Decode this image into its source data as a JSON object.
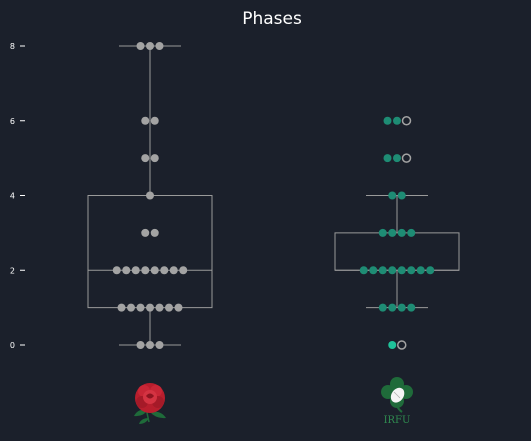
{
  "chart_data": {
    "type": "box-swarm",
    "title": "Phases",
    "xlabel": "",
    "ylabel": "",
    "ylim": [
      -0.5,
      8.5
    ],
    "y_ticks": [
      0,
      2,
      4,
      6,
      8
    ],
    "grid": false,
    "colors": {
      "background": "#1b202b",
      "box_line": "#9a9a9a",
      "england_points": "#a3a3a3",
      "ireland_points": "#1e8c74",
      "ireland_highlight": "#1fc29a",
      "hollow_marker": "#a3a3a3",
      "rose_red": "#b81e2d",
      "shamrock_green": "#1f6b3a"
    },
    "series": [
      {
        "logo": "england-red-rose",
        "box": {
          "min": 0,
          "q1": 1,
          "median": 2,
          "q3": 4,
          "max": 8
        },
        "points": [
          {
            "y": 8,
            "n": 3
          },
          {
            "y": 6,
            "n": 2
          },
          {
            "y": 5,
            "n": 2
          },
          {
            "y": 4,
            "n": 1
          },
          {
            "y": 3,
            "n": 2
          },
          {
            "y": 2,
            "n": 8
          },
          {
            "y": 1,
            "n": 7
          },
          {
            "y": 0,
            "n": 3
          }
        ]
      },
      {
        "logo": "irfu-shamrock-ball",
        "logo_text": "IRFU",
        "box": {
          "min": 1,
          "q1": 2,
          "median": 2,
          "q3": 3,
          "max": 4
        },
        "points": [
          {
            "y": 6,
            "n": 2
          },
          {
            "y": 5,
            "n": 2
          },
          {
            "y": 4,
            "n": 2
          },
          {
            "y": 3,
            "n": 4
          },
          {
            "y": 2,
            "n": 8
          },
          {
            "y": 1,
            "n": 4
          },
          {
            "y": 0,
            "n": 1
          }
        ],
        "hollow_markers": [
          6,
          5,
          0
        ],
        "highlight_y": 0
      }
    ]
  }
}
